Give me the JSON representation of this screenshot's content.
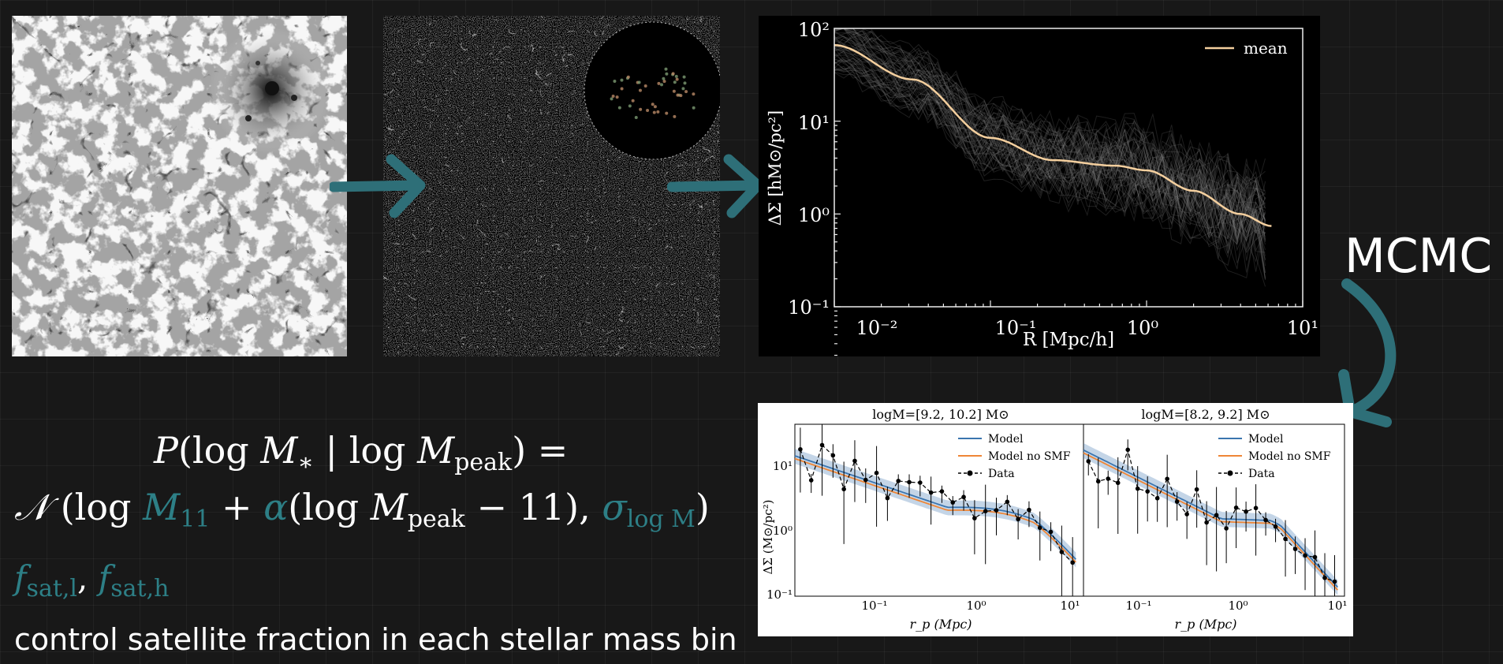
{
  "panels": {
    "simulation": {
      "kind": "dark-matter-density-field"
    },
    "galaxies": {
      "kind": "galaxy-catalog"
    }
  },
  "lensing_plot": {
    "legend": "mean",
    "ylabel": "ΔΣ [hM⊙/pc²]",
    "xlabel": "R [Mpc/h]",
    "xticks": [
      "10⁻²",
      "10⁻¹",
      "10⁰",
      "10¹"
    ],
    "yticks": [
      "10²",
      "10¹",
      "10⁰",
      "10⁻¹"
    ],
    "mean_color": "#f4cf9e"
  },
  "mcmc_label": "MCMC",
  "fit_plot": {
    "ylabel": "ΔΣ (M⊙/pc²)",
    "yticks": [
      "10¹",
      "10⁰",
      "10⁻¹"
    ],
    "xticks": [
      "10⁻¹",
      "10⁰",
      "10¹"
    ],
    "legend": [
      "Model",
      "Model no SMF",
      "Data"
    ],
    "model_color": "#3b75af",
    "model_no_smf_color": "#ef8636",
    "panels": [
      {
        "title": "logM=[9.2, 10.2] M⊙",
        "xlabel": "r_p (Mpc)"
      },
      {
        "title": "logM=[8.2, 9.2] M⊙",
        "xlabel": "r_p (Mpc)"
      }
    ]
  },
  "equation": {
    "line1_P": "P",
    "line1_log1": "(log ",
    "line1_M1": "M",
    "line1_sub_star": "∗",
    "line1_bar": " | log ",
    "line1_M2": "M",
    "line1_sub_peak": "peak",
    "line1_close": ") =",
    "line2_N": "𝒩",
    "line2_open": " (log ",
    "line2_M11": "M",
    "line2_sub_11": "11",
    "line2_plus": " + ",
    "line2_alpha": "α",
    "line2_paren": "(log ",
    "line2_M3": "M",
    "line2_sub_peak": "peak",
    "line2_minus": " − 11), ",
    "line2_sigma": "σ",
    "line2_sub_logM": "log M",
    "line2_close": ")"
  },
  "fsat": {
    "f1": "f",
    "sub1": "sat,l",
    "comma": ", ",
    "f2": "f",
    "sub2": "sat,h"
  },
  "caption": "control satellite fraction in each stellar mass bin",
  "arrow_color": "#2e6f78",
  "accent_color": "#2d7f86"
}
